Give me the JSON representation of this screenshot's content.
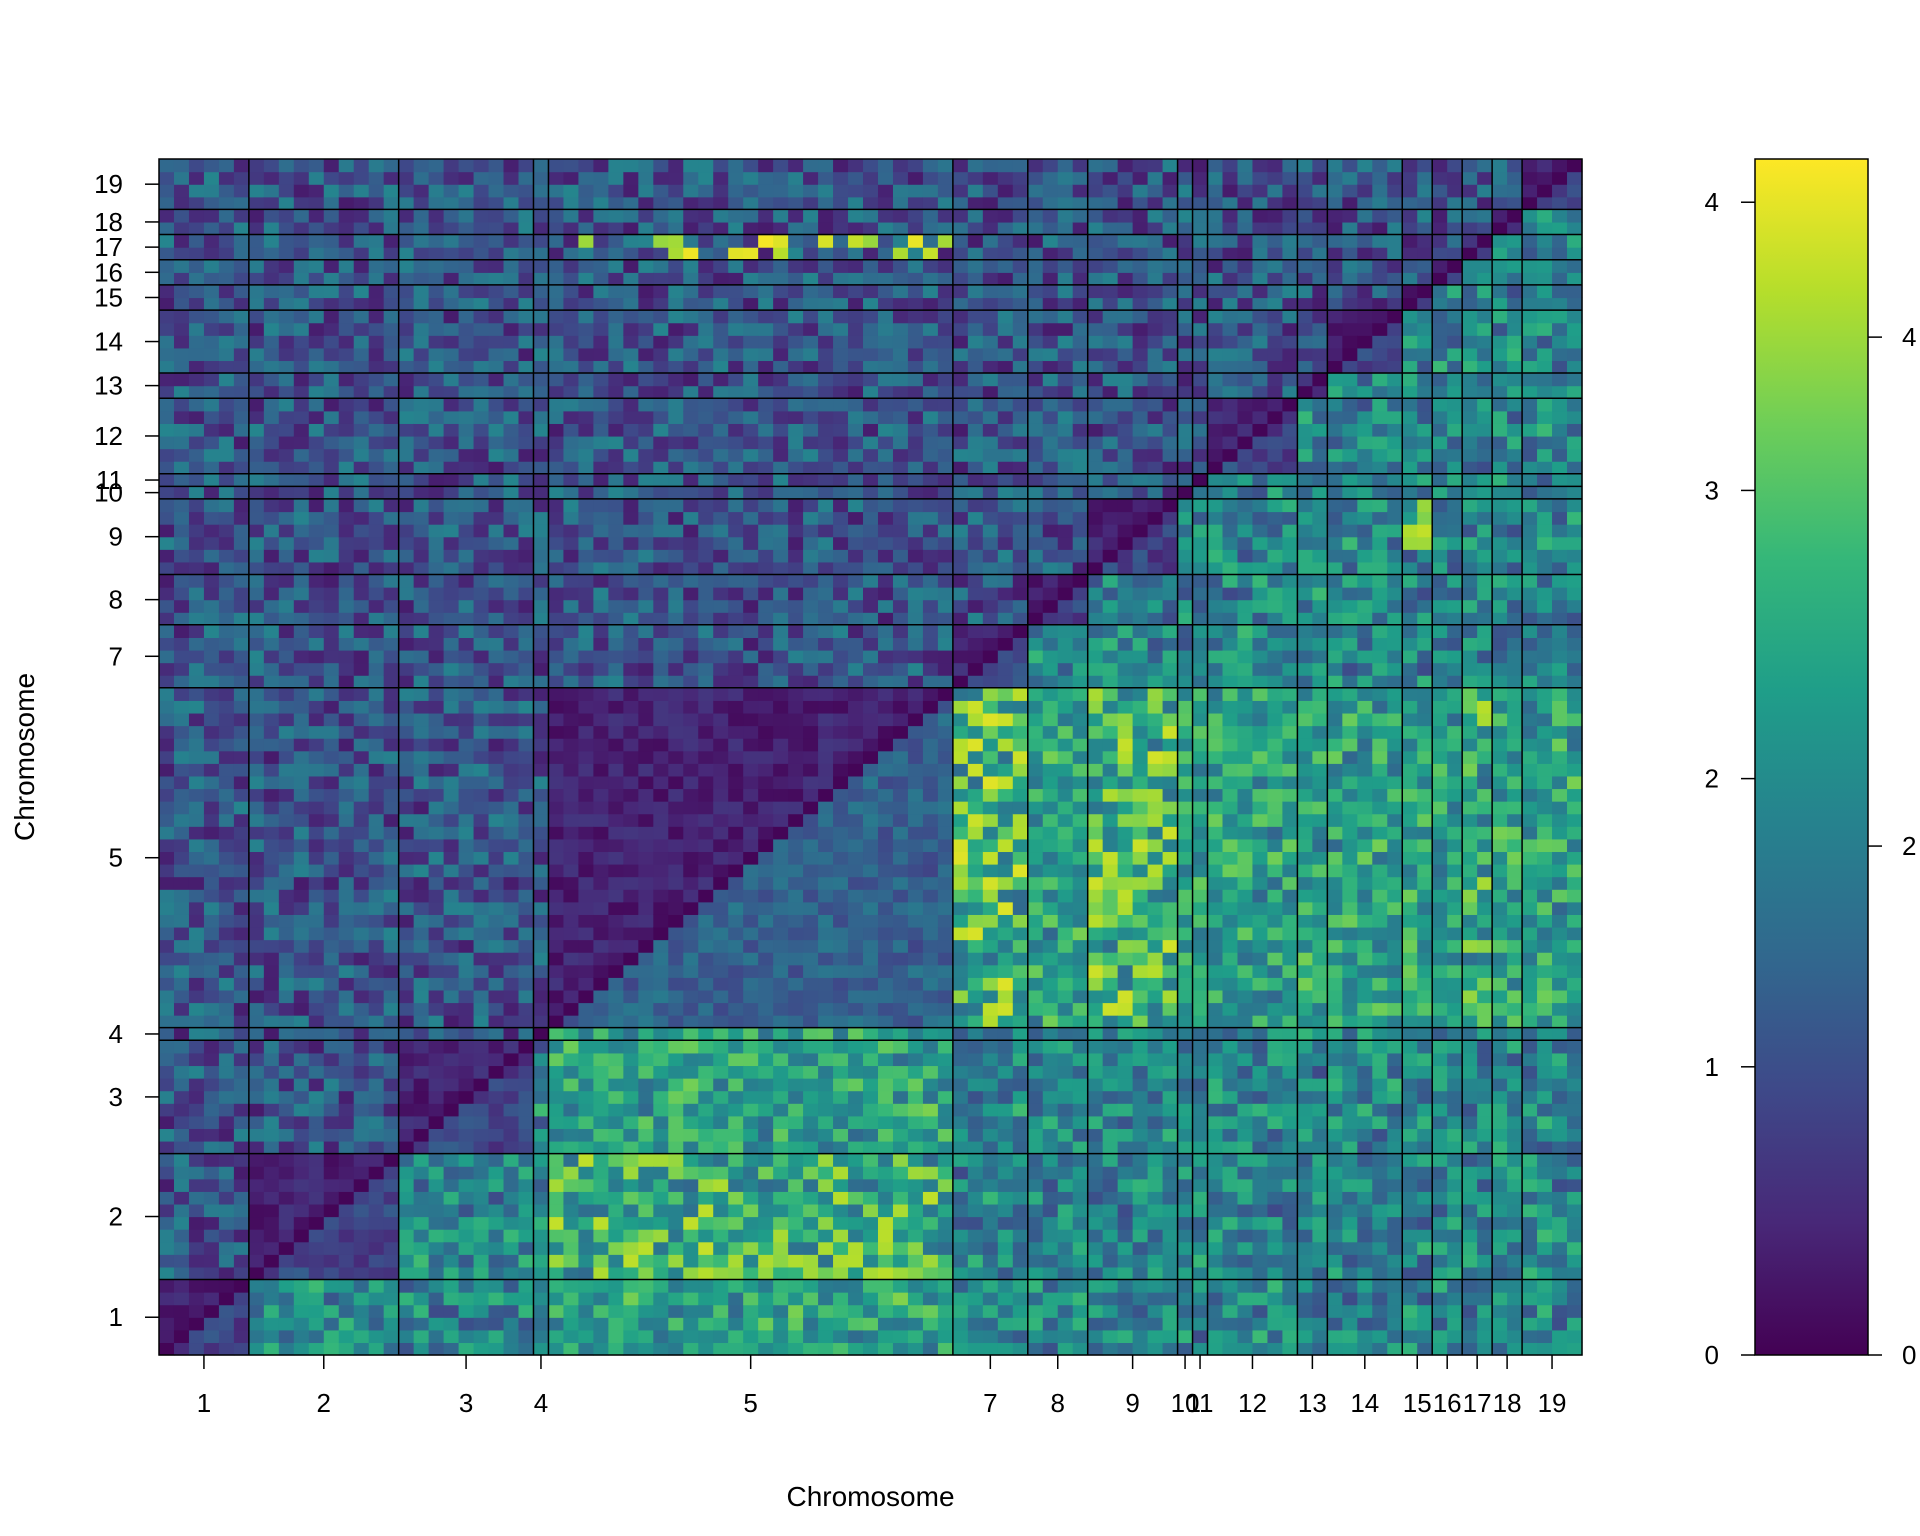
{
  "chart_data": {
    "type": "heatmap",
    "title": "",
    "xlabel": "Chromosome",
    "ylabel": "Chromosome",
    "chromosomes": [
      "1",
      "2",
      "3",
      "4",
      "5",
      "7",
      "8",
      "9",
      "10",
      "11",
      "12",
      "13",
      "14",
      "15",
      "16",
      "17",
      "18",
      "19"
    ],
    "chromosome_marker_counts": [
      6,
      10,
      9,
      1,
      27,
      5,
      4,
      6,
      1,
      1,
      6,
      2,
      5,
      2,
      2,
      2,
      2,
      4
    ],
    "triangles": {
      "upper_left": "values on left color scale (0 to 4)",
      "lower_right": "values on right color scale (0 to 4)"
    },
    "left_scale": {
      "range": [
        0,
        4.15
      ],
      "ticks": [
        "0",
        "1",
        "2",
        "3",
        "4"
      ]
    },
    "right_scale": {
      "range": [
        0,
        4.7
      ],
      "ticks": [
        "0",
        "2",
        "4"
      ]
    },
    "colormap": "viridis",
    "colors": [
      "#440154",
      "#482878",
      "#3e4989",
      "#31688e",
      "#26828e",
      "#1f9e89",
      "#35b779",
      "#6ece58",
      "#b5de2b",
      "#fde725"
    ],
    "notable_cells": [
      {
        "row": "17",
        "col": "5",
        "value": 4.1,
        "triangle": "upper_left"
      },
      {
        "row": "5",
        "col": "7",
        "value": 4.5,
        "triangle": "lower_right"
      },
      {
        "row": "5",
        "col": "9",
        "value": 4.4,
        "triangle": "lower_right"
      },
      {
        "row": "2",
        "col": "5",
        "value": 4.3,
        "triangle": "lower_right"
      },
      {
        "row": "9",
        "col": "15",
        "value": 4.3,
        "triangle": "lower_right"
      },
      {
        "row": "5",
        "col": "17",
        "value": 4.2,
        "triangle": "lower_right"
      }
    ]
  }
}
